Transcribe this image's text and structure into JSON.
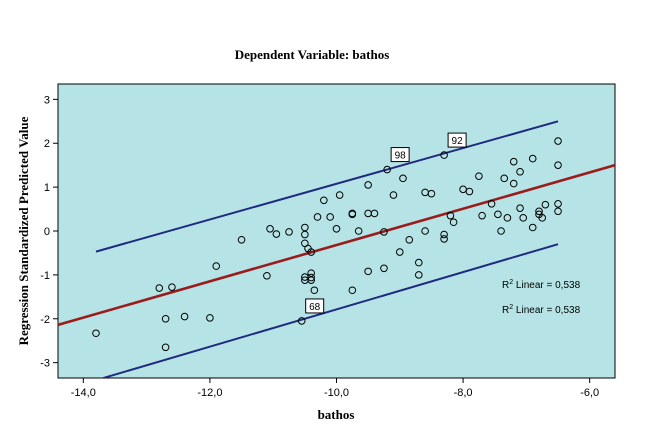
{
  "chart_data": {
    "type": "scatter",
    "title": "Dependent Variable: bathos",
    "xlabel": "bathos",
    "ylabel": "Regression Standardized Predicted Value",
    "xlim": [
      -14.4,
      -5.6
    ],
    "ylim": [
      -3.35,
      3.35
    ],
    "x_ticks": [
      -14,
      -12,
      -10,
      -8,
      -6
    ],
    "x_tick_labels": [
      "-14,0",
      "-12,0",
      "-10,0",
      "-8,0",
      "-6,0"
    ],
    "y_ticks": [
      -3,
      -2,
      -1,
      0,
      1,
      2,
      3
    ],
    "y_tick_labels": [
      "-3",
      "-2",
      "-1",
      "0",
      "1",
      "2",
      "3"
    ],
    "grid": false,
    "colors": {
      "plot_background": "#b6e4e6",
      "fit_line": "#9b1c1c",
      "ci_lines": "#1f2a80",
      "points": "#000000"
    },
    "fit_line": {
      "x": [
        -14.4,
        -5.6
      ],
      "y": [
        -2.14,
        1.5
      ]
    },
    "ci_upper": {
      "x": [
        -13.8,
        -6.5
      ],
      "y": [
        -0.47,
        2.5
      ]
    },
    "ci_lower": {
      "x": [
        -13.8,
        -6.5
      ],
      "y": [
        -3.4,
        -0.3
      ]
    },
    "annotations": [
      "R2 Linear = 0,538",
      "R2 Linear = 0,538"
    ],
    "labeled_points": [
      {
        "label": "98",
        "x": -9.2,
        "y": 1.4
      },
      {
        "label": "92",
        "x": -8.3,
        "y": 1.73
      },
      {
        "label": "68",
        "x": -10.55,
        "y": -2.05
      }
    ],
    "points": [
      [
        -13.8,
        -2.33
      ],
      [
        -12.8,
        -1.3
      ],
      [
        -12.7,
        -2.0
      ],
      [
        -12.7,
        -2.65
      ],
      [
        -12.6,
        -1.28
      ],
      [
        -12.4,
        -1.95
      ],
      [
        -12.0,
        -1.98
      ],
      [
        -11.9,
        -0.8
      ],
      [
        -11.5,
        -0.2
      ],
      [
        -11.1,
        -1.02
      ],
      [
        -11.05,
        0.05
      ],
      [
        -10.95,
        -0.07
      ],
      [
        -10.75,
        -0.02
      ],
      [
        -10.55,
        -2.05
      ],
      [
        -10.5,
        0.08
      ],
      [
        -10.5,
        -0.08
      ],
      [
        -10.5,
        -0.28
      ],
      [
        -10.5,
        -1.05
      ],
      [
        -10.5,
        -1.12
      ],
      [
        -10.45,
        -0.4
      ],
      [
        -10.4,
        -0.48
      ],
      [
        -10.4,
        -0.96
      ],
      [
        -10.4,
        -1.06
      ],
      [
        -10.4,
        -1.12
      ],
      [
        -10.35,
        -1.35
      ],
      [
        -10.3,
        0.32
      ],
      [
        -10.2,
        0.7
      ],
      [
        -10.1,
        0.32
      ],
      [
        -10.0,
        0.05
      ],
      [
        -9.95,
        0.82
      ],
      [
        -9.75,
        0.4
      ],
      [
        -9.75,
        0.38
      ],
      [
        -9.75,
        -1.35
      ],
      [
        -9.65,
        0.0
      ],
      [
        -9.5,
        1.05
      ],
      [
        -9.5,
        0.4
      ],
      [
        -9.5,
        -0.92
      ],
      [
        -9.4,
        0.4
      ],
      [
        -9.25,
        -0.85
      ],
      [
        -9.25,
        -0.02
      ],
      [
        -9.2,
        1.4
      ],
      [
        -9.1,
        0.82
      ],
      [
        -9.0,
        -0.48
      ],
      [
        -8.95,
        1.2
      ],
      [
        -8.85,
        -0.2
      ],
      [
        -8.7,
        -0.72
      ],
      [
        -8.7,
        -1.0
      ],
      [
        -8.6,
        0.0
      ],
      [
        -8.6,
        0.88
      ],
      [
        -8.5,
        0.85
      ],
      [
        -8.3,
        1.73
      ],
      [
        -8.3,
        -0.08
      ],
      [
        -8.3,
        -0.18
      ],
      [
        -8.2,
        0.35
      ],
      [
        -8.15,
        0.2
      ],
      [
        -8.0,
        0.95
      ],
      [
        -7.9,
        0.9
      ],
      [
        -7.75,
        1.25
      ],
      [
        -7.7,
        0.35
      ],
      [
        -7.55,
        0.62
      ],
      [
        -7.45,
        0.38
      ],
      [
        -7.4,
        0.0
      ],
      [
        -7.35,
        1.2
      ],
      [
        -7.3,
        0.3
      ],
      [
        -7.2,
        1.58
      ],
      [
        -7.2,
        1.08
      ],
      [
        -7.1,
        1.35
      ],
      [
        -7.1,
        0.52
      ],
      [
        -7.05,
        0.3
      ],
      [
        -6.9,
        1.65
      ],
      [
        -6.9,
        0.08
      ],
      [
        -6.8,
        0.45
      ],
      [
        -6.8,
        0.38
      ],
      [
        -6.75,
        0.3
      ],
      [
        -6.7,
        0.6
      ],
      [
        -6.5,
        2.05
      ],
      [
        -6.5,
        1.5
      ],
      [
        -6.5,
        0.62
      ],
      [
        -6.5,
        0.45
      ]
    ]
  }
}
